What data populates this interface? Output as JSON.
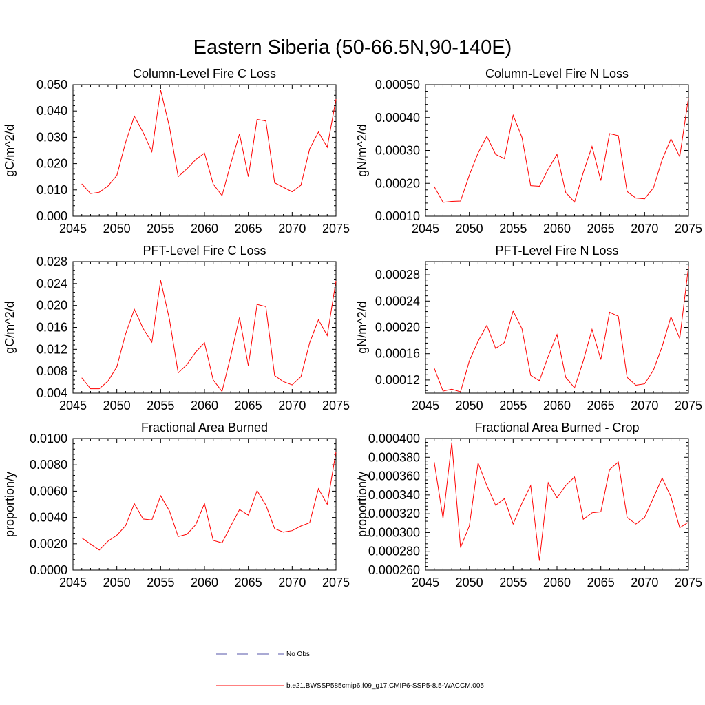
{
  "main_title": "Eastern Siberia (50-66.5N,90-140E)",
  "legend": {
    "no_obs_label": "No Obs",
    "model_label": "b.e21.BWSSP585cmip6.f09_g17.CMIP6-SSP5-8.5-WACCM.005",
    "no_obs_color": "#5555aa",
    "model_color": "#ff0000"
  },
  "chart_data": [
    {
      "type": "line",
      "title": "Column-Level Fire C Loss",
      "ylabel": "gC/m^2/d",
      "xlim": [
        2045,
        2075
      ],
      "ylim": [
        0.0,
        0.05
      ],
      "xticks": [
        2045,
        2050,
        2055,
        2060,
        2065,
        2070,
        2075
      ],
      "xtick_labels": [
        "2045",
        "2050",
        "2055",
        "2060",
        "2065",
        "2070",
        "2075"
      ],
      "yticks": [
        0.0,
        0.01,
        0.02,
        0.03,
        0.04,
        0.05
      ],
      "ytick_labels": [
        "0.000",
        "0.010",
        "0.020",
        "0.030",
        "0.040",
        "0.050"
      ],
      "series": [
        {
          "color": "#ff0000",
          "x": [
            2046,
            2047,
            2048,
            2049,
            2050,
            2051,
            2052,
            2053,
            2054,
            2055,
            2056,
            2057,
            2058,
            2059,
            2060,
            2061,
            2062,
            2063,
            2064,
            2065,
            2066,
            2067,
            2068,
            2069,
            2070,
            2071,
            2072,
            2073,
            2074,
            2075
          ],
          "y": [
            0.0123,
            0.0086,
            0.0091,
            0.0115,
            0.0155,
            0.028,
            0.038,
            0.0318,
            0.0245,
            0.048,
            0.034,
            0.015,
            0.018,
            0.0215,
            0.024,
            0.0122,
            0.0078,
            0.02,
            0.0313,
            0.015,
            0.0368,
            0.0362,
            0.0127,
            0.011,
            0.0093,
            0.0118,
            0.0256,
            0.032,
            0.0262,
            0.0445
          ]
        }
      ]
    },
    {
      "type": "line",
      "title": "Column-Level Fire N Loss",
      "ylabel": "gN/m^2/d",
      "xlim": [
        2045,
        2075
      ],
      "ylim": [
        0.0001,
        0.0005
      ],
      "xticks": [
        2045,
        2050,
        2055,
        2060,
        2065,
        2070,
        2075
      ],
      "xtick_labels": [
        "2045",
        "2050",
        "2055",
        "2060",
        "2065",
        "2070",
        "2075"
      ],
      "yticks": [
        0.0001,
        0.0002,
        0.0003,
        0.0004,
        0.0005
      ],
      "ytick_labels": [
        "0.00010",
        "0.00020",
        "0.00030",
        "0.00040",
        "0.00050"
      ],
      "series": [
        {
          "color": "#ff0000",
          "x": [
            2046,
            2047,
            2048,
            2049,
            2050,
            2051,
            2052,
            2053,
            2054,
            2055,
            2056,
            2057,
            2058,
            2059,
            2060,
            2061,
            2062,
            2063,
            2064,
            2065,
            2066,
            2067,
            2068,
            2069,
            2070,
            2071,
            2072,
            2073,
            2074,
            2075
          ],
          "y": [
            0.00019,
            0.000142,
            0.000145,
            0.000146,
            0.000225,
            0.000292,
            0.000343,
            0.000288,
            0.000275,
            0.000407,
            0.00034,
            0.000193,
            0.000191,
            0.000243,
            0.000288,
            0.000172,
            0.000143,
            0.000233,
            0.000312,
            0.000208,
            0.000351,
            0.000345,
            0.000175,
            0.000155,
            0.000153,
            0.000186,
            0.000272,
            0.000335,
            0.000281,
            0.00046
          ]
        }
      ]
    },
    {
      "type": "line",
      "title": "PFT-Level Fire C Loss",
      "ylabel": "gC/m^2/d",
      "xlim": [
        2045,
        2075
      ],
      "ylim": [
        0.004,
        0.028
      ],
      "xticks": [
        2045,
        2050,
        2055,
        2060,
        2065,
        2070,
        2075
      ],
      "xtick_labels": [
        "2045",
        "2050",
        "2055",
        "2060",
        "2065",
        "2070",
        "2075"
      ],
      "yticks": [
        0.004,
        0.008,
        0.012,
        0.016,
        0.02,
        0.024,
        0.028
      ],
      "ytick_labels": [
        "0.004",
        "0.008",
        "0.012",
        "0.016",
        "0.020",
        "0.024",
        "0.028"
      ],
      "series": [
        {
          "color": "#ff0000",
          "x": [
            2046,
            2047,
            2048,
            2049,
            2050,
            2051,
            2052,
            2053,
            2054,
            2055,
            2056,
            2057,
            2058,
            2059,
            2060,
            2061,
            2062,
            2063,
            2064,
            2065,
            2066,
            2067,
            2068,
            2069,
            2070,
            2071,
            2072,
            2073,
            2074,
            2075
          ],
          "y": [
            0.0068,
            0.0048,
            0.0048,
            0.0062,
            0.0088,
            0.0148,
            0.0193,
            0.0158,
            0.0133,
            0.0246,
            0.0175,
            0.0077,
            0.0092,
            0.0115,
            0.0132,
            0.0064,
            0.0043,
            0.0108,
            0.0178,
            0.009,
            0.0202,
            0.0198,
            0.0072,
            0.0061,
            0.0055,
            0.007,
            0.0132,
            0.0174,
            0.0145,
            0.0245
          ]
        }
      ]
    },
    {
      "type": "line",
      "title": "PFT-Level Fire N Loss",
      "ylabel": "gN/m^2/d",
      "xlim": [
        2045,
        2075
      ],
      "ylim": [
        0.0001,
        0.0003
      ],
      "xticks": [
        2045,
        2050,
        2055,
        2060,
        2065,
        2070,
        2075
      ],
      "xtick_labels": [
        "2045",
        "2050",
        "2055",
        "2060",
        "2065",
        "2070",
        "2075"
      ],
      "yticks": [
        0.00012,
        0.00016,
        0.0002,
        0.00024,
        0.00028
      ],
      "ytick_labels": [
        "0.00012",
        "0.00016",
        "0.00020",
        "0.00024",
        "0.00028"
      ],
      "series": [
        {
          "color": "#ff0000",
          "x": [
            2046,
            2047,
            2048,
            2049,
            2050,
            2051,
            2052,
            2053,
            2054,
            2055,
            2056,
            2057,
            2058,
            2059,
            2060,
            2061,
            2062,
            2063,
            2064,
            2065,
            2066,
            2067,
            2068,
            2069,
            2070,
            2071,
            2072,
            2073,
            2074,
            2075
          ],
          "y": [
            0.000138,
            0.000103,
            0.000106,
            0.000102,
            0.000149,
            0.000179,
            0.000203,
            0.000168,
            0.000177,
            0.000225,
            0.000198,
            0.000127,
            0.000119,
            0.000156,
            0.000189,
            0.000124,
            0.000108,
            0.000149,
            0.000197,
            0.000151,
            0.000223,
            0.000217,
            0.000124,
            0.000112,
            0.000114,
            0.000135,
            0.000171,
            0.000216,
            0.000183,
            0.000292
          ]
        }
      ]
    },
    {
      "type": "line",
      "title": "Fractional Area Burned",
      "ylabel": "proportion/y",
      "xlim": [
        2045,
        2075
      ],
      "ylim": [
        0.0,
        0.01
      ],
      "xticks": [
        2045,
        2050,
        2055,
        2060,
        2065,
        2070,
        2075
      ],
      "xtick_labels": [
        "2045",
        "2050",
        "2055",
        "2060",
        "2065",
        "2070",
        "2075"
      ],
      "yticks": [
        0.0,
        0.002,
        0.004,
        0.006,
        0.008,
        0.01
      ],
      "ytick_labels": [
        "0.0000",
        "0.0020",
        "0.0040",
        "0.0060",
        "0.0080",
        "0.0100"
      ],
      "series": [
        {
          "color": "#ff0000",
          "x": [
            2046,
            2047,
            2048,
            2049,
            2050,
            2051,
            2052,
            2053,
            2054,
            2055,
            2056,
            2057,
            2058,
            2059,
            2060,
            2061,
            2062,
            2063,
            2064,
            2065,
            2066,
            2067,
            2068,
            2069,
            2070,
            2071,
            2072,
            2073,
            2074,
            2075
          ],
          "y": [
            0.00245,
            0.00198,
            0.00153,
            0.0022,
            0.00265,
            0.00337,
            0.00505,
            0.00388,
            0.00381,
            0.00565,
            0.0045,
            0.00255,
            0.00272,
            0.00345,
            0.00506,
            0.00226,
            0.00207,
            0.00335,
            0.0046,
            0.00418,
            0.00604,
            0.00495,
            0.00315,
            0.00289,
            0.003,
            0.00335,
            0.0036,
            0.00619,
            0.005,
            0.009
          ]
        }
      ]
    },
    {
      "type": "line",
      "title": "Fractional Area Burned - Crop",
      "ylabel": "proportion/y",
      "xlim": [
        2045,
        2075
      ],
      "ylim": [
        0.00026,
        0.0004
      ],
      "xticks": [
        2045,
        2050,
        2055,
        2060,
        2065,
        2070,
        2075
      ],
      "xtick_labels": [
        "2045",
        "2050",
        "2055",
        "2060",
        "2065",
        "2070",
        "2075"
      ],
      "yticks": [
        0.00026,
        0.00028,
        0.0003,
        0.00032,
        0.00034,
        0.00036,
        0.00038,
        0.0004
      ],
      "ytick_labels": [
        "0.000260",
        "0.000280",
        "0.000300",
        "0.000320",
        "0.000340",
        "0.000360",
        "0.000380",
        "0.000400"
      ],
      "series": [
        {
          "color": "#ff0000",
          "x": [
            2046,
            2047,
            2048,
            2049,
            2050,
            2051,
            2052,
            2053,
            2054,
            2055,
            2056,
            2057,
            2058,
            2059,
            2060,
            2061,
            2062,
            2063,
            2064,
            2065,
            2066,
            2067,
            2068,
            2069,
            2070,
            2071,
            2072,
            2073,
            2074,
            2075
          ],
          "y": [
            0.000375,
            0.000315,
            0.000396,
            0.000284,
            0.000307,
            0.000374,
            0.00035,
            0.000329,
            0.000336,
            0.000309,
            0.000331,
            0.00035,
            0.00027,
            0.000353,
            0.000337,
            0.00035,
            0.000359,
            0.000314,
            0.000321,
            0.000322,
            0.000367,
            0.000375,
            0.000316,
            0.000309,
            0.000316,
            0.000337,
            0.000358,
            0.000338,
            0.000305,
            0.000311
          ]
        }
      ]
    }
  ]
}
